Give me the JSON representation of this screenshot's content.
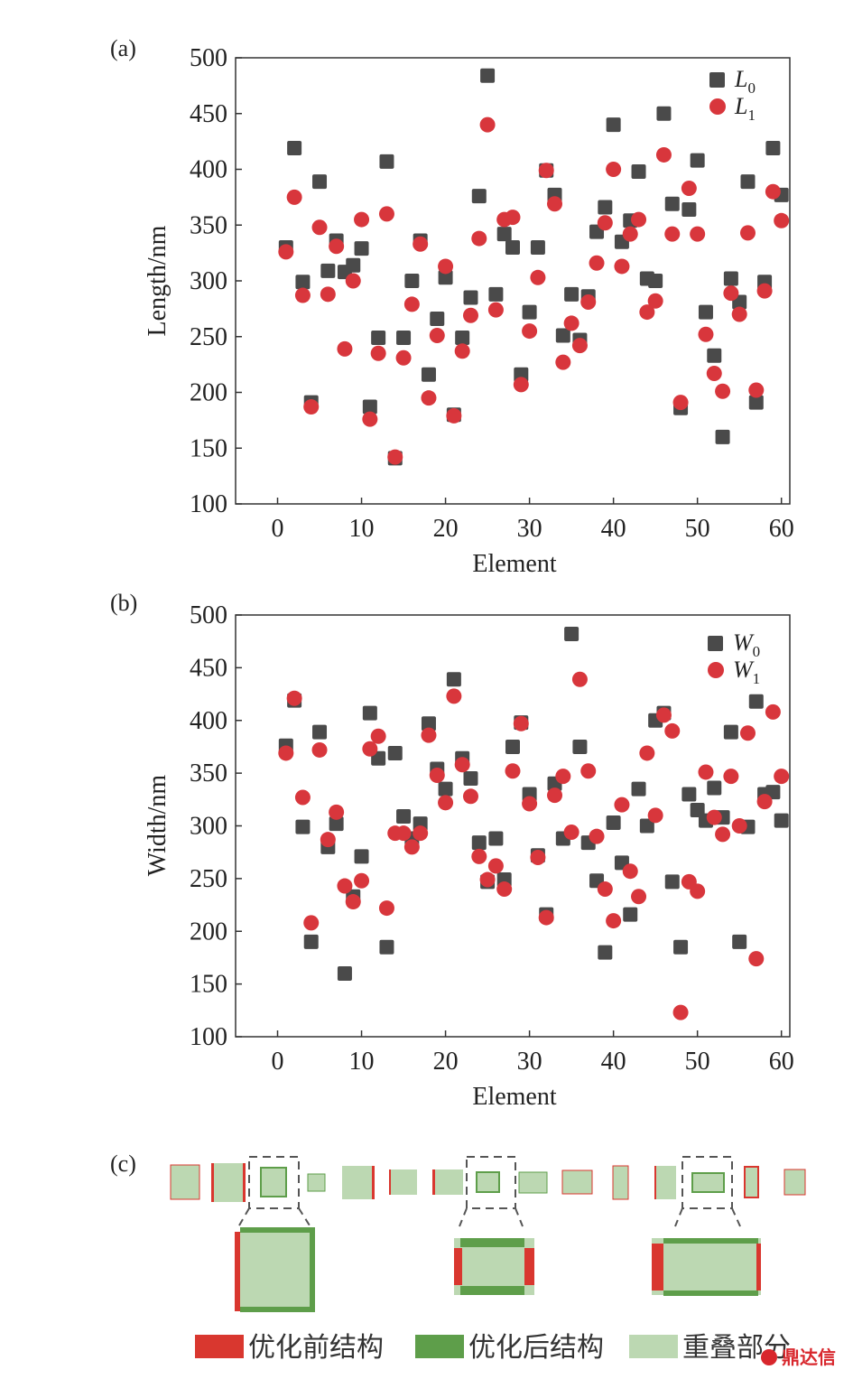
{
  "panel_labels": {
    "a": "(a)",
    "b": "(b)",
    "c": "(c)"
  },
  "colors": {
    "before": "#4a4a4a",
    "after": "#d8363c",
    "red_struct": "#d9372f",
    "green_struct": "#5e9e4a",
    "overlap": "#bcd8b2"
  },
  "chart_data": [
    {
      "type": "scatter",
      "xlabel": "Element",
      "ylabel": "Length/nm",
      "xlim": [
        -5,
        61
      ],
      "ylim": [
        100,
        500
      ],
      "xticks": [
        0,
        10,
        20,
        30,
        40,
        50,
        60
      ],
      "yticks": [
        100,
        150,
        200,
        250,
        300,
        350,
        400,
        450,
        500
      ],
      "legend_position": "top-right",
      "series": [
        {
          "name": "L",
          "sub": "0",
          "marker": "square",
          "color": "#4a4a4a",
          "x": [
            1,
            2,
            3,
            4,
            5,
            6,
            7,
            8,
            9,
            10,
            11,
            12,
            13,
            14,
            15,
            16,
            17,
            18,
            19,
            20,
            21,
            22,
            23,
            24,
            25,
            26,
            27,
            28,
            29,
            30,
            31,
            32,
            33,
            34,
            35,
            36,
            37,
            38,
            39,
            40,
            41,
            42,
            43,
            44,
            45,
            46,
            47,
            48,
            49,
            50,
            51,
            52,
            53,
            54,
            55,
            56,
            57,
            58,
            59,
            60
          ],
          "y": [
            330,
            419,
            299,
            191,
            389,
            309,
            336,
            308,
            314,
            329,
            187,
            249,
            407,
            141,
            249,
            300,
            336,
            216,
            266,
            303,
            180,
            249,
            285,
            376,
            484,
            288,
            342,
            330,
            216,
            272,
            330,
            399,
            377,
            251,
            288,
            247,
            286,
            344,
            366,
            440,
            335,
            354,
            398,
            302,
            300,
            450,
            369,
            186,
            364,
            408,
            272,
            233,
            160,
            302,
            281,
            389,
            191,
            299,
            419,
            377
          ]
        },
        {
          "name": "L",
          "sub": "1",
          "marker": "circle",
          "color": "#d8363c",
          "x": [
            1,
            2,
            3,
            4,
            5,
            6,
            7,
            8,
            9,
            10,
            11,
            12,
            13,
            14,
            15,
            16,
            17,
            18,
            19,
            20,
            21,
            22,
            23,
            24,
            25,
            26,
            27,
            28,
            29,
            30,
            31,
            32,
            33,
            34,
            35,
            36,
            37,
            38,
            39,
            40,
            41,
            42,
            43,
            44,
            45,
            46,
            47,
            48,
            49,
            50,
            51,
            52,
            53,
            54,
            55,
            56,
            57,
            58,
            59,
            60
          ],
          "y": [
            326,
            375,
            287,
            187,
            348,
            288,
            331,
            239,
            300,
            355,
            176,
            235,
            360,
            142,
            231,
            279,
            333,
            195,
            251,
            313,
            179,
            237,
            269,
            338,
            440,
            274,
            355,
            357,
            207,
            255,
            303,
            399,
            369,
            227,
            262,
            242,
            281,
            316,
            352,
            400,
            313,
            342,
            355,
            272,
            282,
            413,
            342,
            191,
            383,
            342,
            252,
            217,
            201,
            289,
            270,
            343,
            202,
            291,
            380,
            354
          ]
        }
      ]
    },
    {
      "type": "scatter",
      "xlabel": "Element",
      "ylabel": "Width/nm",
      "xlim": [
        -5,
        61
      ],
      "ylim": [
        100,
        500
      ],
      "xticks": [
        0,
        10,
        20,
        30,
        40,
        50,
        60
      ],
      "yticks": [
        100,
        150,
        200,
        250,
        300,
        350,
        400,
        450,
        500
      ],
      "legend_position": "top-right",
      "series": [
        {
          "name": "W",
          "sub": "0",
          "marker": "square",
          "color": "#4a4a4a",
          "x": [
            1,
            2,
            3,
            4,
            5,
            6,
            7,
            8,
            9,
            10,
            11,
            12,
            13,
            14,
            15,
            16,
            17,
            18,
            19,
            20,
            21,
            22,
            23,
            24,
            25,
            26,
            27,
            28,
            29,
            30,
            31,
            32,
            33,
            34,
            35,
            36,
            37,
            38,
            39,
            40,
            41,
            42,
            43,
            44,
            45,
            46,
            47,
            48,
            49,
            50,
            51,
            52,
            53,
            54,
            55,
            56,
            57,
            58,
            59,
            60
          ],
          "y": [
            376,
            419,
            299,
            190,
            389,
            280,
            302,
            160,
            233,
            271,
            407,
            364,
            185,
            369,
            309,
            288,
            302,
            397,
            354,
            335,
            439,
            364,
            345,
            284,
            247,
            288,
            249,
            375,
            398,
            330,
            272,
            216,
            340,
            288,
            482,
            375,
            284,
            248,
            180,
            303,
            265,
            216,
            335,
            300,
            400,
            407,
            247,
            185,
            330,
            315,
            305,
            336,
            308,
            389,
            190,
            299,
            418,
            330,
            332,
            305
          ]
        },
        {
          "name": "W",
          "sub": "1",
          "marker": "circle",
          "color": "#d8363c",
          "x": [
            1,
            2,
            3,
            4,
            5,
            6,
            7,
            8,
            9,
            10,
            11,
            12,
            13,
            14,
            15,
            16,
            17,
            18,
            19,
            20,
            21,
            22,
            23,
            24,
            25,
            26,
            27,
            28,
            29,
            30,
            31,
            32,
            33,
            34,
            35,
            36,
            37,
            38,
            39,
            40,
            41,
            42,
            43,
            44,
            45,
            46,
            47,
            48,
            49,
            50,
            51,
            52,
            53,
            54,
            55,
            56,
            57,
            58,
            59,
            60
          ],
          "y": [
            369,
            421,
            327,
            208,
            372,
            287,
            313,
            243,
            228,
            248,
            373,
            385,
            222,
            293,
            293,
            280,
            293,
            386,
            348,
            322,
            423,
            358,
            328,
            271,
            249,
            262,
            240,
            352,
            397,
            321,
            270,
            213,
            329,
            347,
            294,
            439,
            352,
            290,
            240,
            210,
            320,
            257,
            233,
            369,
            310,
            405,
            390,
            123,
            247,
            238,
            351,
            308,
            292,
            347,
            300,
            388,
            174,
            323,
            408,
            347
          ]
        }
      ]
    }
  ],
  "legend_c": {
    "before": "优化前结构",
    "after": "优化后结构",
    "overlap": "重叠部分"
  },
  "watermark": "鼎达信"
}
